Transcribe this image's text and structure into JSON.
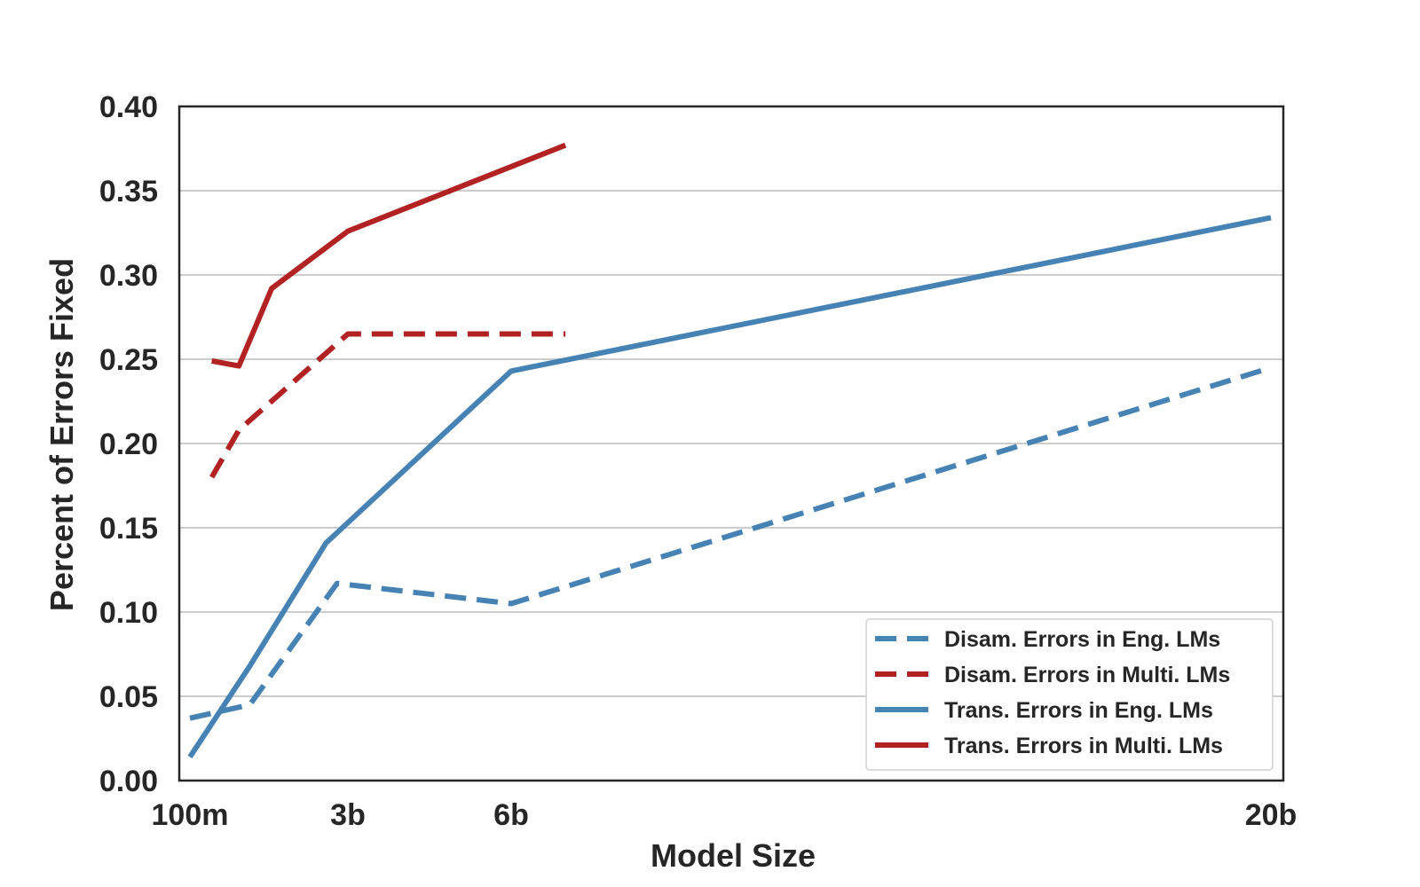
{
  "chart_data": {
    "type": "line",
    "xlabel": "Model Size",
    "ylabel": "Percent of Errors Fixed",
    "ylim": [
      0,
      0.4
    ],
    "y_ticks": [
      "0.00",
      "0.05",
      "0.10",
      "0.15",
      "0.20",
      "0.25",
      "0.30",
      "0.35",
      "0.40"
    ],
    "x_ticks": [
      "100m",
      "3b",
      "6b",
      "20b"
    ],
    "x_tick_values": [
      0.1,
      3,
      6,
      20
    ],
    "grid": "horizontal",
    "legend_position": "lower-right",
    "series": [
      {
        "name": "Disam. Errors in Eng. LMs",
        "style": "dashed",
        "color": "#4682B4",
        "points": [
          [
            0.1,
            0.037
          ],
          [
            1.2,
            0.045
          ],
          [
            2.8,
            0.117
          ],
          [
            6,
            0.105
          ],
          [
            20,
            0.245
          ]
        ]
      },
      {
        "name": "Disam. Errors in Multi. LMs",
        "style": "dashed",
        "color": "#B22222",
        "points": [
          [
            0.5,
            0.18
          ],
          [
            1.0,
            0.208
          ],
          [
            3.0,
            0.265
          ],
          [
            7.0,
            0.265
          ]
        ]
      },
      {
        "name": "Trans. Errors in Eng. LMs",
        "style": "solid",
        "color": "#4682B4",
        "points": [
          [
            0.1,
            0.014
          ],
          [
            1.2,
            0.068
          ],
          [
            2.6,
            0.141
          ],
          [
            6,
            0.243
          ],
          [
            20,
            0.334
          ]
        ]
      },
      {
        "name": "Trans. Errors in Multi. LMs",
        "style": "solid",
        "color": "#B22222",
        "points": [
          [
            0.5,
            0.249
          ],
          [
            1.0,
            0.246
          ],
          [
            1.6,
            0.292
          ],
          [
            3.0,
            0.326
          ],
          [
            7.0,
            0.377
          ]
        ]
      }
    ]
  }
}
